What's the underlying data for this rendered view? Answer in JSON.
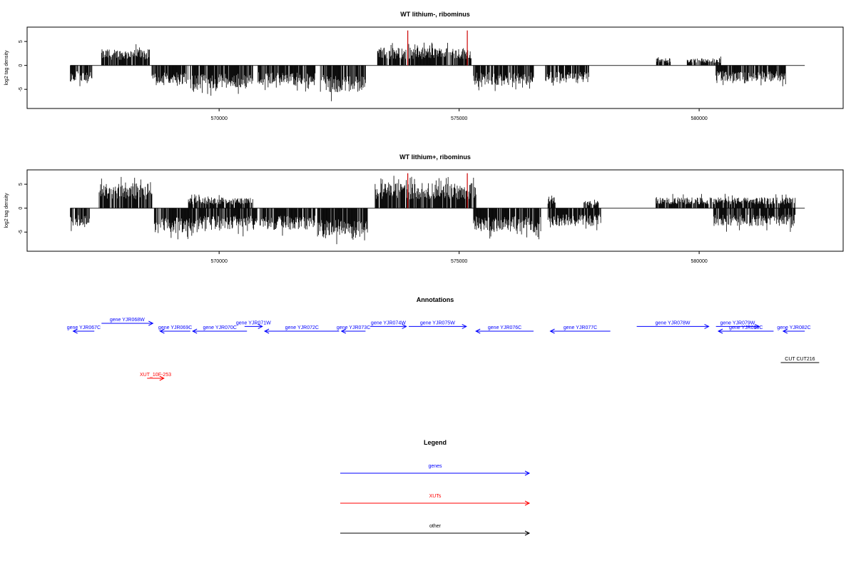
{
  "chart_data": [
    {
      "type": "bar",
      "title": "WT lithium-, ribominus",
      "xlabel": "",
      "ylabel": "log2 tag density",
      "xlim": [
        566000,
        583000
      ],
      "ylim": [
        -9,
        8
      ],
      "x_ticks": [
        "570000",
        "575000",
        "580000"
      ],
      "x_tick_values": [
        570000,
        575000,
        580000
      ],
      "y_ticks": [
        "-5",
        "0",
        "5"
      ],
      "y_tick_values": [
        -5,
        0,
        5
      ],
      "signal_color": "#000000",
      "marker_color": "#cc0000",
      "red_markers": [
        {
          "x": 573930,
          "y": 7.3
        },
        {
          "x": 575170,
          "y": 7.3
        }
      ],
      "plus_strand_regions": [
        {
          "start": 567550,
          "end": 568550,
          "max": 4.5
        },
        {
          "start": 573300,
          "end": 575250,
          "max": 5.0
        },
        {
          "start": 579100,
          "end": 579400,
          "max": 2.0
        },
        {
          "start": 579750,
          "end": 580450,
          "max": 2.0
        }
      ],
      "minus_strand_regions": [
        {
          "start": 566900,
          "end": 567350,
          "min": -4.5
        },
        {
          "start": 568600,
          "end": 569350,
          "min": -5.5
        },
        {
          "start": 569400,
          "end": 570700,
          "min": -6.5
        },
        {
          "start": 570800,
          "end": 572000,
          "min": -5.5
        },
        {
          "start": 572100,
          "end": 573050,
          "min": -7.5
        },
        {
          "start": 575300,
          "end": 576550,
          "min": -5.5
        },
        {
          "start": 576800,
          "end": 577700,
          "min": -5.0
        },
        {
          "start": 580350,
          "end": 581800,
          "min": -4.5
        }
      ]
    },
    {
      "type": "bar",
      "title": "WT lithium+, ribominus",
      "xlabel": "",
      "ylabel": "log2 tag density",
      "xlim": [
        566000,
        583000
      ],
      "ylim": [
        -9,
        8
      ],
      "x_ticks": [
        "570000",
        "575000",
        "580000"
      ],
      "x_tick_values": [
        570000,
        575000,
        580000
      ],
      "y_ticks": [
        "-5",
        "0",
        "5"
      ],
      "y_tick_values": [
        -5,
        0,
        5
      ],
      "signal_color": "#000000",
      "marker_color": "#cc0000",
      "red_markers": [
        {
          "x": 573930,
          "y": 7.3
        },
        {
          "x": 575170,
          "y": 7.3
        }
      ],
      "plus_strand_regions": [
        {
          "start": 567500,
          "end": 568600,
          "max": 7.0
        },
        {
          "start": 569350,
          "end": 570700,
          "min_fill": 0,
          "max": 3.0
        },
        {
          "start": 573250,
          "end": 575350,
          "max": 7.0
        },
        {
          "start": 576850,
          "end": 577000,
          "max": 3.5
        },
        {
          "start": 577600,
          "end": 577900,
          "max": 2.0
        },
        {
          "start": 579100,
          "end": 582000,
          "max": 3.0
        }
      ],
      "minus_strand_regions": [
        {
          "start": 566900,
          "end": 567300,
          "min": -5.0
        },
        {
          "start": 568650,
          "end": 569500,
          "min": -7.0
        },
        {
          "start": 569450,
          "end": 570800,
          "min": -6.0
        },
        {
          "start": 570850,
          "end": 572000,
          "min": -6.0
        },
        {
          "start": 572050,
          "end": 573100,
          "min": -8.5
        },
        {
          "start": 575300,
          "end": 576700,
          "min": -6.5
        },
        {
          "start": 576850,
          "end": 577950,
          "min": -5.0
        },
        {
          "start": 580300,
          "end": 582000,
          "min": -5.0
        }
      ]
    }
  ],
  "annotations": {
    "title": "Annotations",
    "gene_color": "#0000ff",
    "xut_color": "#ff0000",
    "other_color": "#000000",
    "features": [
      {
        "label": "gene YJR067C",
        "start": 566960,
        "end": 567400,
        "strand": "-",
        "row": 1,
        "type": "gene"
      },
      {
        "label": "gene YJR068W",
        "start": 567550,
        "end": 568620,
        "strand": "+",
        "row": 0,
        "type": "gene"
      },
      {
        "label": "gene YJR069C",
        "start": 568770,
        "end": 569400,
        "strand": "-",
        "row": 1,
        "type": "gene"
      },
      {
        "label": "gene YJR070C",
        "start": 569450,
        "end": 570580,
        "strand": "-",
        "row": 1,
        "type": "gene"
      },
      {
        "label": "gene YJR071W",
        "start": 570530,
        "end": 570900,
        "strand": "+",
        "row": 0.4,
        "type": "gene"
      },
      {
        "label": "gene YJR072C",
        "start": 570950,
        "end": 572500,
        "strand": "-",
        "row": 1,
        "type": "gene"
      },
      {
        "label": "gene YJR073C",
        "start": 572550,
        "end": 573050,
        "strand": "-",
        "row": 1,
        "type": "gene"
      },
      {
        "label": "gene YJR074W",
        "start": 573150,
        "end": 573900,
        "strand": "+",
        "row": 0.4,
        "type": "gene"
      },
      {
        "label": "gene YJR075W",
        "start": 573950,
        "end": 575150,
        "strand": "+",
        "row": 0.4,
        "type": "gene"
      },
      {
        "label": "gene YJR076C",
        "start": 575350,
        "end": 576550,
        "strand": "-",
        "row": 1,
        "type": "gene"
      },
      {
        "label": "gene YJR077C",
        "start": 576900,
        "end": 578150,
        "strand": "-",
        "row": 1,
        "type": "gene"
      },
      {
        "label": "gene YJR078W",
        "start": 578700,
        "end": 580200,
        "strand": "+",
        "row": 0.4,
        "type": "gene"
      },
      {
        "label": "gene YJR079W",
        "start": 580350,
        "end": 581250,
        "strand": "+",
        "row": 0.4,
        "type": "gene"
      },
      {
        "label": "gene YJR080C",
        "start": 580400,
        "end": 581550,
        "strand": "-",
        "row": 1,
        "type": "gene"
      },
      {
        "label": "gene YJR082C",
        "start": 581750,
        "end": 582200,
        "strand": "-",
        "row": 1,
        "type": "gene"
      },
      {
        "label": "XUT_10F-253",
        "start": 568500,
        "end": 568850,
        "strand": "+",
        "row": 7,
        "type": "xut"
      },
      {
        "label": "CUT CUT216",
        "start": 581700,
        "end": 582500,
        "strand": "",
        "row": 5,
        "type": "other"
      }
    ]
  },
  "legend": {
    "title": "Legend",
    "items": [
      {
        "label": "genes",
        "color": "#0000ff"
      },
      {
        "label": "XUTs",
        "color": "#ff0000"
      },
      {
        "label": "other",
        "color": "#000000"
      }
    ]
  }
}
